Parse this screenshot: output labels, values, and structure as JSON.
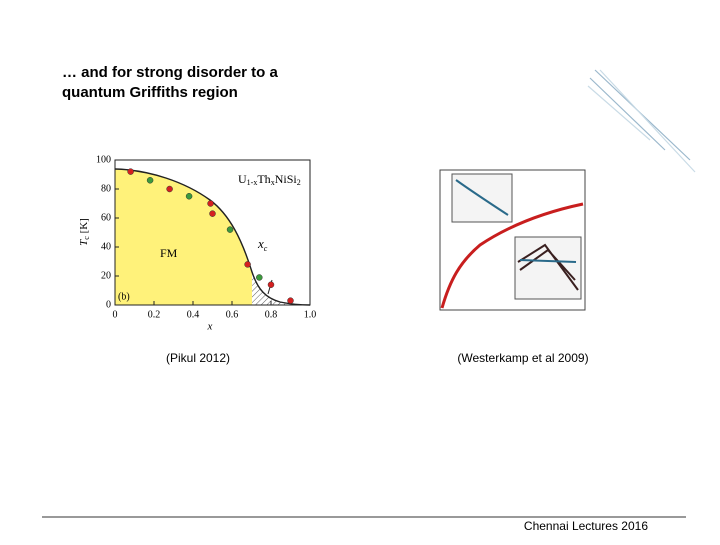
{
  "title_lines": [
    "… and for strong disorder to a",
    "quantum Griffiths region"
  ],
  "left_figure": {
    "formula": [
      "U",
      "1-x",
      "Th",
      "x",
      "NiSi",
      "2"
    ],
    "region_label": "FM",
    "critical_label": [
      "x",
      "c"
    ],
    "panel_label": "(b)",
    "ylabel": [
      "T",
      "c",
      " [K]"
    ],
    "xlabel": "x",
    "xlim": [
      0,
      1
    ],
    "ylim": [
      0,
      100
    ],
    "xticks": [
      0,
      0.2,
      0.4,
      0.6,
      0.8,
      {
        "value": 1,
        "label": "1.0"
      }
    ],
    "yticks": [
      0,
      20,
      40,
      60,
      80,
      100
    ],
    "series": [
      {
        "color": "#d42020",
        "x": [
          0.08,
          0.28,
          0.49,
          0.5,
          0.68,
          0.8,
          0.9
        ],
        "values": [
          92,
          80,
          70,
          63,
          28,
          14,
          3
        ]
      },
      {
        "color": "#3c9a3c",
        "x": [
          0.18,
          0.38,
          0.59,
          0.74
        ],
        "values": [
          86,
          75,
          52,
          19
        ]
      }
    ],
    "caption": "(Pikul 2012)"
  },
  "right_figure": {
    "caption": "(Westerkamp et al 2009)"
  },
  "footer": "Chennai Lectures 2016"
}
